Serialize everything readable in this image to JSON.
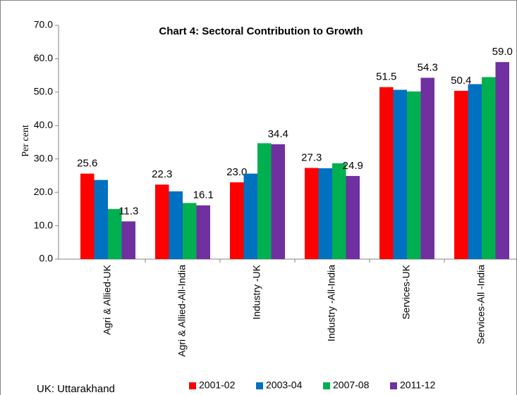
{
  "chart_data": {
    "type": "bar",
    "title": "Chart 4: Sectoral  Contribution to Growth",
    "y_label": "Per cent",
    "note": "UK: Uttarakhand",
    "categories": [
      "Agri & Allied-UK",
      "Agri & Allied-All-India",
      "Industry -UK",
      "Industry -All-India",
      "Services-UK",
      "Services-All -India"
    ],
    "series": [
      {
        "name": "2001-02",
        "color": "#ff0000",
        "values": [
          25.6,
          22.3,
          23.0,
          27.3,
          51.5,
          50.4
        ],
        "value_labels": [
          "25.6",
          "22.3",
          "23.0",
          "27.3",
          "51.5",
          "50.4"
        ]
      },
      {
        "name": "2003-04",
        "color": "#0070c0",
        "values": [
          23.7,
          20.3,
          25.6,
          27.2,
          50.7,
          52.4
        ]
      },
      {
        "name": "2007-08",
        "color": "#00b050",
        "values": [
          15.0,
          16.8,
          34.7,
          28.7,
          50.2,
          54.5
        ]
      },
      {
        "name": "2011-12",
        "color": "#7030a0",
        "values": [
          11.3,
          16.1,
          34.4,
          24.9,
          54.3,
          59.0
        ],
        "value_labels": [
          "11.3",
          "16.1",
          "34.4",
          "24.9",
          "54.3",
          "59.0"
        ]
      }
    ],
    "ylim": [
      0,
      70
    ],
    "yticks": [
      {
        "value": 0,
        "label": "0.0"
      },
      {
        "value": 10,
        "label": "10.0"
      },
      {
        "value": 20,
        "label": "20.0"
      },
      {
        "value": 30,
        "label": "30.0"
      },
      {
        "value": 40,
        "label": "40.0"
      },
      {
        "value": 50,
        "label": "50.0"
      },
      {
        "value": 60,
        "label": "60.0"
      },
      {
        "value": 70,
        "label": "70.0"
      }
    ],
    "legend": "bottom"
  }
}
